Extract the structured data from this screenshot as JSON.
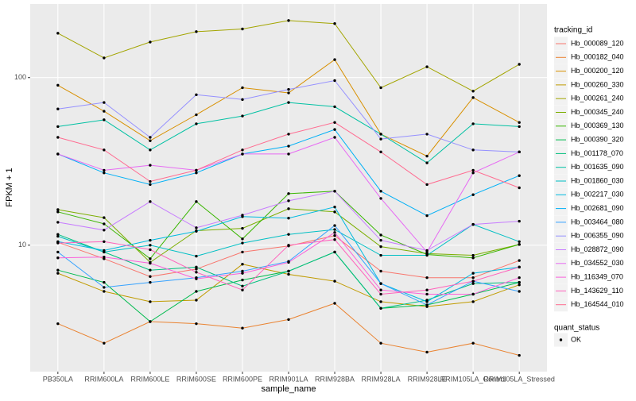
{
  "chart_data": {
    "type": "line",
    "x_label": "sample_name",
    "y_label": "FPKM + 1",
    "log_y": true,
    "grid": true,
    "legend_title": "tracking_id",
    "legend_position": "right",
    "shape_legend": {
      "title": "quant_status",
      "labels": [
        "OK"
      ]
    },
    "categories": [
      "PB350LA",
      "RRIM600LA",
      "RRIM600LE",
      "RRIM600SE",
      "RRIM600PE",
      "RRIM901LA",
      "RRIM928BA",
      "RRIM928LA",
      "RRIM928LE",
      "RRIM105LA_Control",
      "RRIM105LA_Stressed"
    ],
    "ylim": [
      1.76,
      275
    ],
    "yticks": [
      10,
      100
    ],
    "series": [
      {
        "name": "Hb_000089_120",
        "color": "#F8766D",
        "values": [
          10.4,
          8.3,
          6.5,
          7.2,
          9.1,
          9.9,
          11.4,
          7.0,
          6.4,
          6.4,
          8.1
        ]
      },
      {
        "name": "Hb_000182_040",
        "color": "#EA8331",
        "values": [
          3.4,
          2.6,
          3.5,
          3.4,
          3.2,
          3.6,
          4.5,
          2.6,
          2.3,
          2.6,
          2.2
        ]
      },
      {
        "name": "Hb_000200_120",
        "color": "#D89000",
        "values": [
          90,
          63,
          42,
          60,
          87,
          81,
          128,
          46,
          34,
          76,
          54
        ]
      },
      {
        "name": "Hb_000260_330",
        "color": "#C09B00",
        "values": [
          6.8,
          5.3,
          4.6,
          4.7,
          7.7,
          6.7,
          6.1,
          4.6,
          4.3,
          4.6,
          5.8
        ]
      },
      {
        "name": "Hb_000261_240",
        "color": "#A3A500",
        "values": [
          184,
          131,
          163,
          188,
          195,
          219,
          210,
          87,
          116,
          83,
          120
        ]
      },
      {
        "name": "Hb_000345_240",
        "color": "#7CAE00",
        "values": [
          16.3,
          14.6,
          7.9,
          12.2,
          12.6,
          16.5,
          15.8,
          9.8,
          8.9,
          8.7,
          10.1
        ]
      },
      {
        "name": "Hb_000369_130",
        "color": "#39B600",
        "values": [
          15.8,
          13.4,
          8.3,
          18.2,
          10.9,
          20.3,
          21,
          11.5,
          8.8,
          8.4,
          10.1
        ]
      },
      {
        "name": "Hb_000390_320",
        "color": "#00BB4E",
        "values": [
          7.1,
          6.0,
          3.5,
          5.3,
          6.2,
          7.0,
          9.1,
          4.2,
          4.4,
          5.1,
          6.0
        ]
      },
      {
        "name": "Hb_001178_070",
        "color": "#00BF7D",
        "values": [
          11.6,
          9.1,
          7.1,
          7.4,
          5.7,
          7.0,
          9.1,
          4.2,
          4.7,
          5.9,
          6.0
        ]
      },
      {
        "name": "Hb_001635_090",
        "color": "#00C1A3",
        "values": [
          51,
          56,
          37,
          53,
          59,
          71,
          67,
          46,
          31,
          53,
          51
        ]
      },
      {
        "name": "Hb_001860_030",
        "color": "#00BFC4",
        "values": [
          11.3,
          9.1,
          10,
          8.6,
          10.3,
          11.6,
          12.4,
          8.7,
          8.7,
          13.3,
          10.5
        ]
      },
      {
        "name": "Hb_002217_030",
        "color": "#00BAE0",
        "values": [
          10.5,
          9.3,
          10.7,
          12.1,
          14.8,
          14.5,
          16.9,
          5.9,
          4.6,
          6.8,
          7.4
        ]
      },
      {
        "name": "Hb_002681_090",
        "color": "#00B0F6",
        "values": [
          35,
          27,
          23,
          27,
          35,
          39,
          49,
          21,
          15,
          20,
          26
        ]
      },
      {
        "name": "Hb_003464_080",
        "color": "#35A2FF",
        "values": [
          9.1,
          5.6,
          6.0,
          6.4,
          7.0,
          8.0,
          13.1,
          5.9,
          4.4,
          6.1,
          5.3
        ]
      },
      {
        "name": "Hb_006355_090",
        "color": "#9590FF",
        "values": [
          65,
          71,
          44,
          79,
          74,
          85,
          96,
          43,
          46,
          37,
          36
        ]
      },
      {
        "name": "Hb_028872_090",
        "color": "#C77CFF",
        "values": [
          13.7,
          12.3,
          18.2,
          12.7,
          15.1,
          18.4,
          21,
          10.7,
          9.3,
          13.3,
          13.9
        ]
      },
      {
        "name": "Hb_034552_030",
        "color": "#E76BF3",
        "values": [
          35,
          28,
          30,
          28,
          35,
          35,
          44,
          19,
          9.1,
          27,
          36
        ]
      },
      {
        "name": "Hb_116349_070",
        "color": "#FA62DB",
        "values": [
          8.4,
          8.5,
          7.8,
          6.3,
          6.8,
          7.9,
          11.9,
          5.4,
          5.1,
          5.1,
          6.4
        ]
      },
      {
        "name": "Hb_143629_110",
        "color": "#FF62BC",
        "values": [
          10.3,
          10.5,
          9.4,
          6.9,
          5.4,
          10,
          10.8,
          5.1,
          5.4,
          6.1,
          7.4
        ]
      },
      {
        "name": "Hb_164544_010",
        "color": "#FF6C91",
        "values": [
          44,
          37,
          24,
          28,
          37,
          46,
          54,
          36,
          23,
          28,
          22
        ]
      }
    ]
  }
}
